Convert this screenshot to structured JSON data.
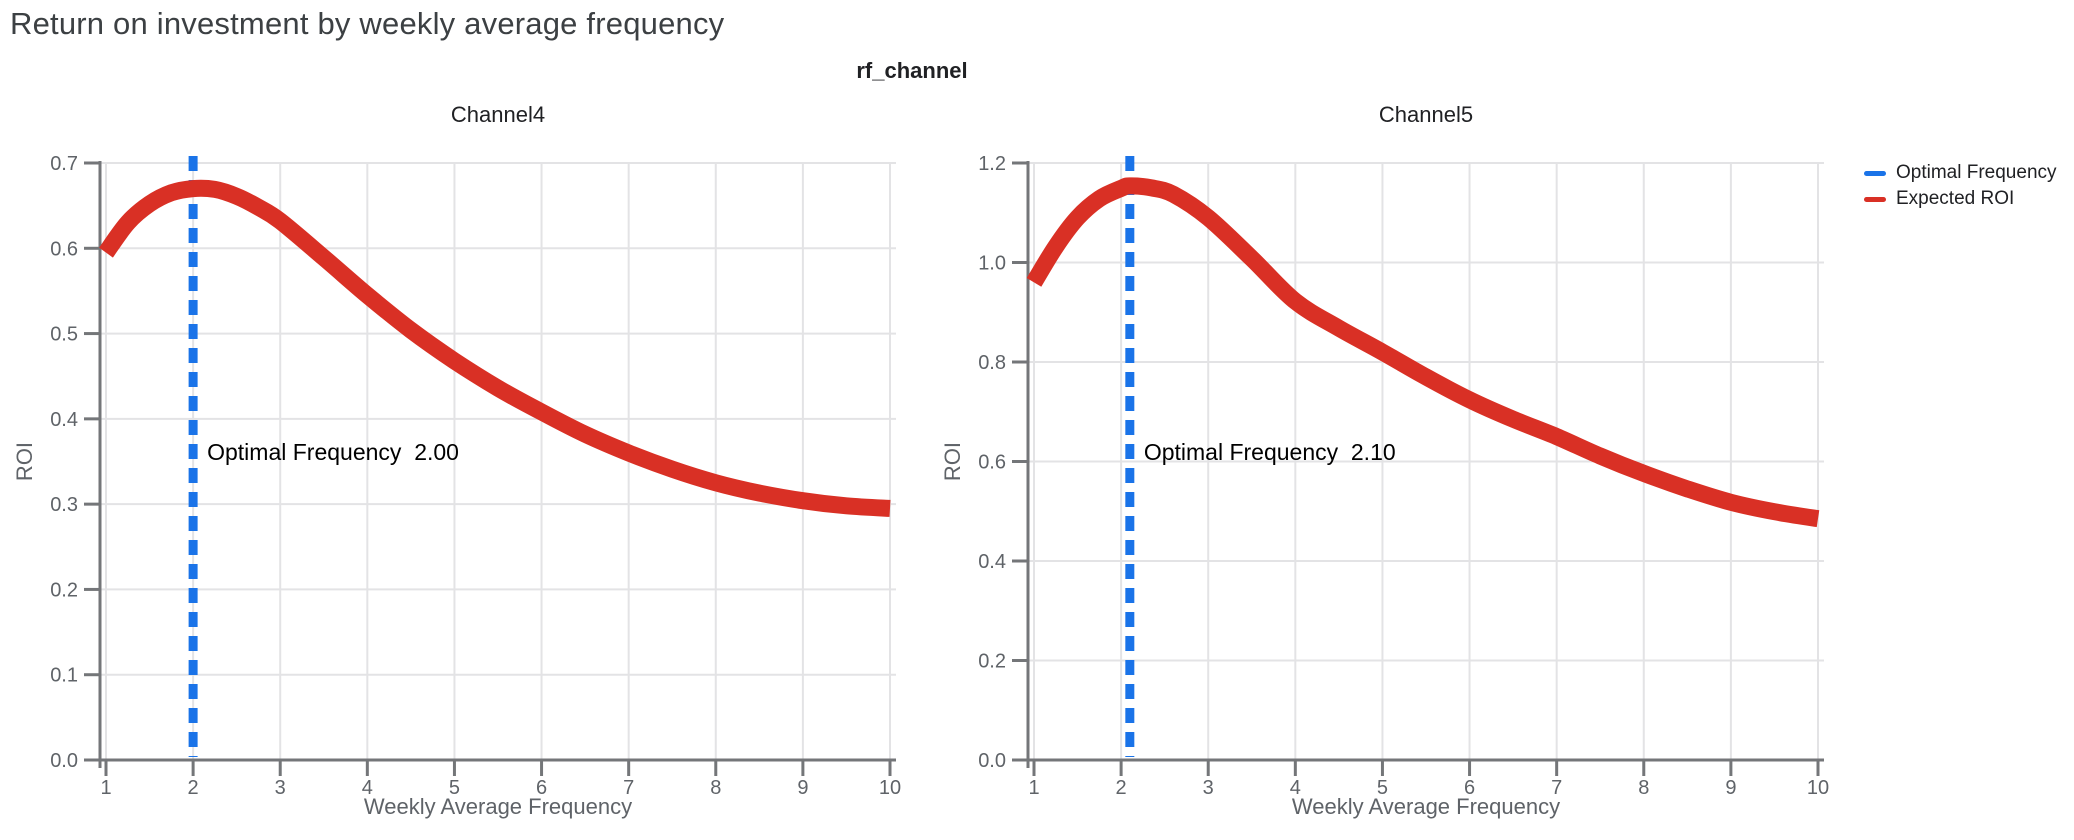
{
  "page": {
    "title": "Return on investment by weekly average frequency"
  },
  "legend": {
    "position": "top-right",
    "items": [
      {
        "label": "Optimal Frequency",
        "color": "#1a73e8"
      },
      {
        "label": "Expected ROI",
        "color": "#d93025"
      }
    ]
  },
  "chart_data": {
    "type": "line",
    "facet_title": "rf_channel",
    "xlabel": "Weekly Average Frequency",
    "ylabel": "ROI",
    "x_ticks": [
      1,
      2,
      3,
      4,
      5,
      6,
      7,
      8,
      9,
      10
    ],
    "x_range": [
      1,
      10
    ],
    "grid": "on",
    "colors": {
      "expected_roi": "#d93025",
      "optimal_frequency": "#1a73e8",
      "grid": "#e3e3e5",
      "axis": "#747679",
      "tick_label": "#5f6368",
      "axis_title": "#5f6368",
      "annotation": "#000000"
    },
    "panels": [
      {
        "title": "Channel4",
        "optimal_frequency": 2.0,
        "annotation": {
          "label": "Optimal Frequency",
          "value": "2.00"
        },
        "ylim": [
          0,
          0.7
        ],
        "y_ticks": [
          0.0,
          0.1,
          0.2,
          0.3,
          0.4,
          0.5,
          0.6,
          0.7
        ],
        "series": {
          "name": "Expected ROI",
          "x": [
            1,
            1.25,
            1.5,
            1.75,
            2,
            2.25,
            2.5,
            2.75,
            3,
            3.5,
            4,
            4.5,
            5,
            5.5,
            6,
            6.5,
            7,
            7.5,
            8,
            8.5,
            9,
            9.5,
            10
          ],
          "y": [
            0.595,
            0.63,
            0.652,
            0.665,
            0.67,
            0.669,
            0.661,
            0.648,
            0.632,
            0.589,
            0.545,
            0.504,
            0.468,
            0.436,
            0.408,
            0.382,
            0.36,
            0.341,
            0.325,
            0.313,
            0.304,
            0.298,
            0.295
          ]
        }
      },
      {
        "title": "Channel5",
        "optimal_frequency": 2.1,
        "annotation": {
          "label": "Optimal Frequency",
          "value": "2.10"
        },
        "ylim": [
          0,
          1.2
        ],
        "y_ticks": [
          0.0,
          0.2,
          0.4,
          0.6,
          0.8,
          1.0,
          1.2
        ],
        "series": {
          "name": "Expected ROI",
          "x": [
            1,
            1.25,
            1.5,
            1.75,
            2,
            2.1,
            2.35,
            2.6,
            3,
            3.5,
            4,
            4.5,
            5,
            5.5,
            6,
            6.5,
            7,
            7.5,
            8,
            8.5,
            9,
            9.5,
            10
          ],
          "y": [
            0.96,
            1.032,
            1.09,
            1.128,
            1.149,
            1.154,
            1.15,
            1.137,
            1.09,
            1.008,
            0.922,
            0.868,
            0.82,
            0.77,
            0.724,
            0.685,
            0.65,
            0.611,
            0.576,
            0.545,
            0.518,
            0.499,
            0.485
          ]
        }
      }
    ]
  }
}
